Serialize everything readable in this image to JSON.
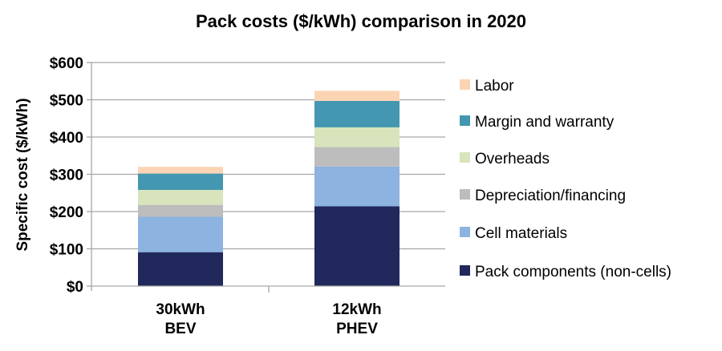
{
  "chart_data": {
    "type": "bar",
    "stacked": true,
    "title": "Pack costs ($/kWh) comparison in 2020",
    "xlabel": "",
    "ylabel": "Specific cost ($/kWh)",
    "ylim": [
      0,
      600
    ],
    "yticks": [
      "$0",
      "$100",
      "$200",
      "$300",
      "$400",
      "$500",
      "$600"
    ],
    "ytick_values": [
      0,
      100,
      200,
      300,
      400,
      500,
      600
    ],
    "grid": true,
    "legend_position": "right",
    "categories": [
      [
        "30kWh",
        "BEV"
      ],
      [
        "12kWh",
        "PHEV"
      ]
    ],
    "series": [
      {
        "name": "Pack components (non-cells)",
        "color": "#20285c",
        "values": [
          91,
          214
        ]
      },
      {
        "name": "Cell materials",
        "color": "#8db3e0",
        "values": [
          95,
          107
        ]
      },
      {
        "name": "Depreciation/financing",
        "color": "#bdbdbd",
        "values": [
          32,
          52
        ]
      },
      {
        "name": "Overheads",
        "color": "#d8e4bc",
        "values": [
          40,
          53
        ]
      },
      {
        "name": "Margin and warranty",
        "color": "#4397b0",
        "values": [
          44,
          71
        ]
      },
      {
        "name": "Labor",
        "color": "#fbd4b4",
        "values": [
          18,
          27
        ]
      }
    ]
  }
}
